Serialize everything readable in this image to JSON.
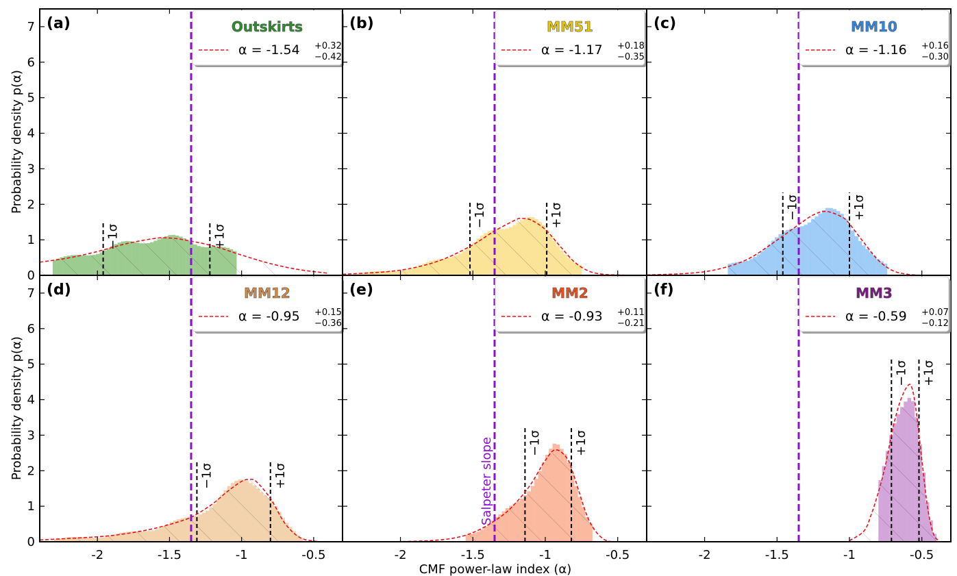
{
  "figure": {
    "xlabel": "CMF power-law index (α)",
    "ylabel": "Probability density p(α)",
    "reference_line": {
      "value": -1.35,
      "label": "Salpeter slope",
      "color": "#8b10d0"
    }
  },
  "chart_data": [
    {
      "type": "area",
      "panel": "(a)",
      "region": "Outskirts",
      "title_color": "#2e8b2e",
      "fill_color": "#9ccc90",
      "fit_label": "α = -1.54",
      "alpha": -1.54,
      "err_plus": 0.32,
      "err_minus": 0.42,
      "sup": "+0.32",
      "sub": "−0.42",
      "sigma_lines": {
        "minus": -1.96,
        "plus": -1.22,
        "minus_label": "−1σ",
        "plus_label": "+1σ"
      },
      "hist_range": [
        -2.31,
        -1.05
      ],
      "x": [
        -2.4,
        -2.2,
        -2.0,
        -1.8,
        -1.6,
        -1.5,
        -1.4,
        -1.2,
        -1.0,
        -0.8,
        -0.6,
        -0.4
      ],
      "y": [
        0.37,
        0.49,
        0.67,
        0.89,
        1.04,
        1.05,
        1.0,
        0.83,
        0.57,
        0.33,
        0.16,
        0.06
      ],
      "xlim": [
        -2.4,
        -0.3
      ],
      "ylim": [
        0,
        7.5
      ],
      "xticks": [
        -2,
        -1.5,
        -1,
        -0.5
      ],
      "yticks": [
        0,
        1,
        2,
        3,
        4,
        5,
        6,
        7
      ]
    },
    {
      "type": "area",
      "panel": "(b)",
      "region": "MM51",
      "title_color": "#e8c800",
      "fill_color": "#fbe497",
      "fit_label": "α = -1.17",
      "alpha": -1.17,
      "err_plus": 0.18,
      "err_minus": 0.35,
      "sup": "+0.18",
      "sub": "−0.35",
      "sigma_lines": {
        "minus": -1.52,
        "plus": -0.99,
        "minus_label": "−1σ",
        "plus_label": "+1σ"
      },
      "hist_range": [
        -2.4,
        -0.77
      ],
      "x": [
        -2.4,
        -2.1,
        -1.9,
        -1.7,
        -1.5,
        -1.35,
        -1.2,
        -1.17,
        -1.1,
        -1.0,
        -0.9,
        -0.8,
        -0.7,
        -0.6,
        -0.5,
        -0.4
      ],
      "y": [
        0.03,
        0.1,
        0.22,
        0.46,
        0.86,
        1.25,
        1.57,
        1.6,
        1.56,
        1.29,
        0.83,
        0.38,
        0.12,
        0.03,
        0.01,
        0.0
      ],
      "xlim": [
        -2.4,
        -0.3
      ],
      "ylim": [
        0,
        7.5
      ],
      "xticks": [
        -2,
        -1.5,
        -1,
        -0.5
      ],
      "yticks": [
        0,
        1,
        2,
        3,
        4,
        5,
        6,
        7
      ]
    },
    {
      "type": "area",
      "panel": "(c)",
      "region": "MM10",
      "title_color": "#2f86e0",
      "fill_color": "#9fcdf8",
      "fit_label": "α = -1.16",
      "alpha": -1.16,
      "err_plus": 0.16,
      "err_minus": 0.3,
      "sup": "+0.16",
      "sub": "−0.30",
      "sigma_lines": {
        "minus": -1.46,
        "plus": -1.0,
        "minus_label": "−1σ",
        "plus_label": "+1σ"
      },
      "hist_range": [
        -1.84,
        -0.75
      ],
      "x": [
        -2.4,
        -2.1,
        -1.9,
        -1.7,
        -1.5,
        -1.35,
        -1.25,
        -1.16,
        -1.05,
        -1.0,
        -0.9,
        -0.8,
        -0.7,
        -0.6,
        -0.5
      ],
      "y": [
        0.01,
        0.06,
        0.18,
        0.46,
        0.99,
        1.43,
        1.7,
        1.8,
        1.64,
        1.45,
        0.92,
        0.42,
        0.13,
        0.03,
        0.0
      ],
      "xlim": [
        -2.4,
        -0.3
      ],
      "ylim": [
        0,
        7.5
      ],
      "xticks": [
        -2,
        -1.5,
        -1,
        -0.5
      ],
      "yticks": [
        0,
        1,
        2,
        3,
        4,
        5,
        6,
        7
      ]
    },
    {
      "type": "area",
      "panel": "(d)",
      "region": "MM12",
      "title_color": "#cd8a4a",
      "fill_color": "#f2d3ad",
      "fit_label": "α = -0.95",
      "alpha": -0.95,
      "err_plus": 0.15,
      "err_minus": 0.36,
      "sup": "+0.15",
      "sub": "−0.36",
      "sigma_lines": {
        "minus": -1.31,
        "plus": -0.8,
        "minus_label": "−1σ",
        "plus_label": "+1σ"
      },
      "hist_range": [
        -2.3,
        -0.58
      ],
      "x": [
        -2.4,
        -2.0,
        -1.8,
        -1.6,
        -1.4,
        -1.31,
        -1.2,
        -1.1,
        -1.0,
        -0.95,
        -0.9,
        -0.8,
        -0.7,
        -0.6,
        -0.5,
        -0.4
      ],
      "y": [
        0.05,
        0.14,
        0.23,
        0.38,
        0.61,
        0.78,
        1.07,
        1.41,
        1.7,
        1.75,
        1.7,
        1.22,
        0.52,
        0.13,
        0.02,
        0.0
      ],
      "xlim": [
        -2.4,
        -0.3
      ],
      "ylim": [
        0,
        7.5
      ],
      "xticks": [
        -2,
        -1.5,
        -1,
        -0.5
      ],
      "yticks": [
        0,
        1,
        2,
        3,
        4,
        5,
        6,
        7
      ]
    },
    {
      "type": "area",
      "panel": "(e)",
      "region": "MM2",
      "title_color": "#e94e1b",
      "fill_color": "#fbb9a0",
      "fit_label": "α = -0.93",
      "alpha": -0.93,
      "err_plus": 0.11,
      "err_minus": 0.21,
      "sup": "+0.11",
      "sub": "−0.21",
      "sigma_lines": {
        "minus": -1.14,
        "plus": -0.82,
        "minus_label": "−1σ",
        "plus_label": "+1σ"
      },
      "hist_range": [
        -1.55,
        -0.68
      ],
      "x": [
        -2.1,
        -1.8,
        -1.6,
        -1.45,
        -1.3,
        -1.2,
        -1.1,
        -1.0,
        -0.93,
        -0.85,
        -0.8,
        -0.7,
        -0.6,
        -0.5
      ],
      "y": [
        0.0,
        0.03,
        0.13,
        0.35,
        0.73,
        1.11,
        1.62,
        2.29,
        2.59,
        2.35,
        1.83,
        0.62,
        0.08,
        0.0
      ],
      "xlim": [
        -2.4,
        -0.3
      ],
      "ylim": [
        0,
        7.5
      ],
      "xticks": [
        -2,
        -1.5,
        -1,
        -0.5
      ],
      "yticks": [
        0,
        1,
        2,
        3,
        4,
        5,
        6,
        7
      ]
    },
    {
      "type": "area",
      "panel": "(f)",
      "region": "MM3",
      "title_color": "#7a1a80",
      "fill_color": "#d2a6d8",
      "fit_label": "α = -0.59",
      "alpha": -0.59,
      "err_plus": 0.07,
      "err_minus": 0.12,
      "sup": "+0.07",
      "sub": "−0.12",
      "sigma_lines": {
        "minus": -0.71,
        "plus": -0.52,
        "minus_label": "−1σ",
        "plus_label": "+1σ"
      },
      "hist_range": [
        -0.8,
        -0.4
      ],
      "x": [
        -1.0,
        -0.9,
        -0.85,
        -0.8,
        -0.75,
        -0.7,
        -0.65,
        -0.6,
        -0.57,
        -0.54,
        -0.5,
        -0.46,
        -0.42,
        -0.38
      ],
      "y": [
        0.03,
        0.3,
        0.76,
        1.4,
        2.18,
        3.2,
        3.95,
        4.38,
        4.35,
        3.7,
        2.3,
        0.95,
        0.22,
        0.02
      ],
      "xlim": [
        -2.4,
        -0.3
      ],
      "ylim": [
        0,
        7.5
      ],
      "xticks": [
        -2,
        -1.5,
        -1,
        -0.5
      ],
      "yticks": [
        0,
        1,
        2,
        3,
        4,
        5,
        6,
        7
      ]
    }
  ]
}
